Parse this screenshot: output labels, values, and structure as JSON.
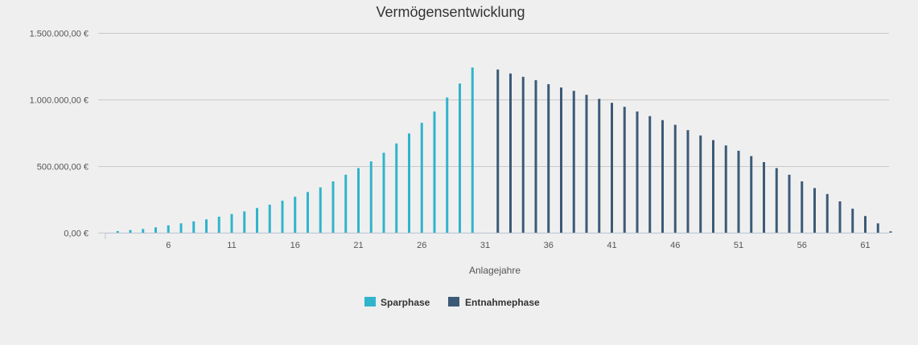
{
  "chart_data": {
    "type": "bar",
    "title": "Vermögensentwicklung",
    "xlabel": "Anlagejahre",
    "ylabel": "",
    "ylim": [
      0,
      1500000
    ],
    "yticks": [
      {
        "value": 0,
        "label": "0,00 €"
      },
      {
        "value": 500000,
        "label": "500.000,00 €"
      },
      {
        "value": 1000000,
        "label": "1.000.000,00 €"
      },
      {
        "value": 1500000,
        "label": "1.500.000,00 €"
      }
    ],
    "xticks": [
      {
        "value": 6,
        "label": "6"
      },
      {
        "value": 11,
        "label": "11"
      },
      {
        "value": 16,
        "label": "16"
      },
      {
        "value": 21,
        "label": "21"
      },
      {
        "value": 26,
        "label": "26"
      },
      {
        "value": 31,
        "label": "31"
      },
      {
        "value": 36,
        "label": "36"
      },
      {
        "value": 41,
        "label": "41"
      },
      {
        "value": 46,
        "label": "46"
      },
      {
        "value": 51,
        "label": "51"
      },
      {
        "value": 56,
        "label": "56"
      },
      {
        "value": 61,
        "label": "61"
      }
    ],
    "x_range": [
      1,
      62
    ],
    "grid": true,
    "legend_position": "bottom-center",
    "series": [
      {
        "name": "Sparphase",
        "color": "#30b4cc",
        "x": [
          2,
          3,
          4,
          5,
          6,
          7,
          8,
          9,
          10,
          11,
          12,
          13,
          14,
          15,
          16,
          17,
          18,
          19,
          20,
          21,
          22,
          23,
          24,
          25,
          26,
          27,
          28,
          29,
          30
        ],
        "values": [
          12000,
          20000,
          28000,
          40000,
          55000,
          70000,
          85000,
          100000,
          120000,
          140000,
          160000,
          185000,
          210000,
          240000,
          270000,
          305000,
          340000,
          385000,
          435000,
          485000,
          535000,
          600000,
          670000,
          745000,
          825000,
          910000,
          1015000,
          1120000,
          1240000
        ]
      },
      {
        "name": "Entnahmephase",
        "color": "#3b5a78",
        "x": [
          32,
          33,
          34,
          35,
          36,
          37,
          38,
          39,
          40,
          41,
          42,
          43,
          44,
          45,
          46,
          47,
          48,
          49,
          50,
          51,
          52,
          53,
          54,
          55,
          56,
          57,
          58,
          59,
          60,
          61,
          62,
          63
        ],
        "values": [
          1225000,
          1195000,
          1170000,
          1145000,
          1115000,
          1090000,
          1065000,
          1035000,
          1005000,
          975000,
          945000,
          910000,
          875000,
          845000,
          810000,
          770000,
          730000,
          695000,
          655000,
          615000,
          575000,
          530000,
          485000,
          435000,
          385000,
          335000,
          290000,
          235000,
          180000,
          125000,
          70000,
          10000
        ]
      }
    ]
  }
}
